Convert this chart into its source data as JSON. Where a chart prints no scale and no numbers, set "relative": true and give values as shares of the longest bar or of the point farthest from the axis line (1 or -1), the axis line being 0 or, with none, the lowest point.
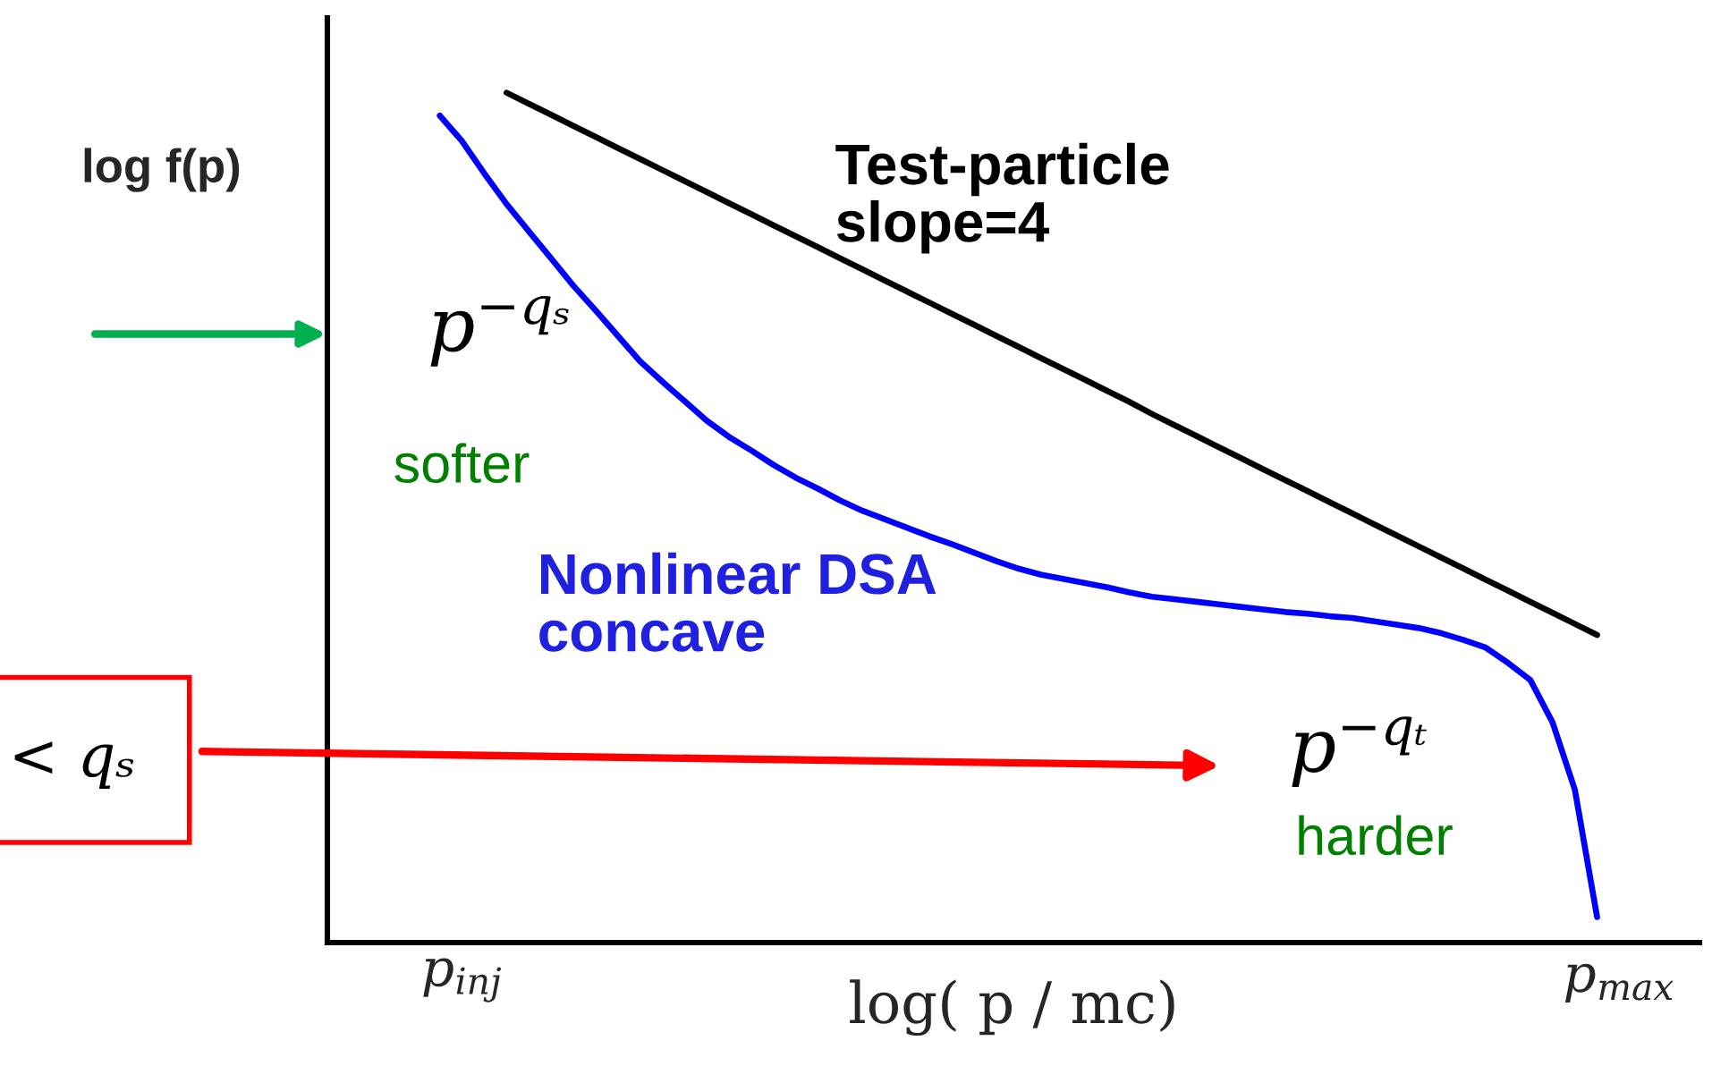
{
  "chart_data": {
    "type": "line",
    "relative": true,
    "xlabel": "log( p / mc)",
    "ylabel": "log f(p)",
    "categories": [
      null,
      null,
      null,
      null,
      null,
      null,
      "p$_{inj}$",
      null,
      null,
      null,
      null,
      null,
      null,
      null,
      null,
      null,
      null,
      null,
      null,
      null,
      null,
      null,
      null,
      null,
      null,
      null,
      null,
      null,
      null,
      null,
      null,
      null,
      null,
      null,
      null,
      null,
      null,
      null,
      null,
      null,
      null,
      null,
      null,
      null,
      null,
      null,
      null,
      null,
      null,
      null,
      null,
      null,
      null,
      null,
      null,
      null,
      null,
      null,
      "p$_{max}$"
    ],
    "tick_labels": "x",
    "marker": "none",
    "line_style": "solid",
    "grid": false,
    "series": [
      {
        "color": "#0000ff",
        "values": [
          null,
          null,
          null,
          null,
          null,
          0.973,
          0.943,
          0.905,
          0.869,
          0.837,
          0.805,
          0.773,
          0.744,
          0.714,
          0.684,
          0.66,
          0.637,
          0.614,
          0.595,
          0.579,
          0.562,
          0.547,
          0.534,
          0.52,
          0.508,
          0.498,
          0.488,
          0.478,
          0.469,
          0.459,
          0.449,
          0.44,
          0.433,
          0.428,
          0.423,
          0.418,
          0.412,
          0.407,
          0.404,
          0.401,
          0.398,
          0.395,
          0.392,
          0.389,
          0.387,
          0.384,
          0.382,
          0.378,
          0.374,
          0.37,
          0.364,
          0.356,
          0.347,
          0.329,
          0.309,
          0.259,
          0.18,
          0.03,
          null
        ]
      },
      {
        "color": "#000000",
        "values": [
          null,
          null,
          null,
          null,
          null,
          null,
          null,
          null,
          1.0,
          0.987,
          0.974,
          0.961,
          0.948,
          0.935,
          0.922,
          0.909,
          0.896,
          0.883,
          0.87,
          0.857,
          0.844,
          0.831,
          0.818,
          0.805,
          0.792,
          0.779,
          0.766,
          0.753,
          0.74,
          0.727,
          0.714,
          0.701,
          0.688,
          0.675,
          0.662,
          0.649,
          0.636,
          0.622,
          0.609,
          0.596,
          0.583,
          0.57,
          0.557,
          0.544,
          0.531,
          0.518,
          0.505,
          0.492,
          0.479,
          0.466,
          0.453,
          0.44,
          0.427,
          0.414,
          0.401,
          0.388,
          0.375,
          0.362,
          null
        ]
      }
    ],
    "annotations": [
      "Test-particle\nslope=4",
      "p$^{−qₛ}$",
      "softer",
      "Nonlinear DSA\nconcave",
      "p$^{−qₜ}$",
      "harder",
      "< qₛ"
    ]
  }
}
